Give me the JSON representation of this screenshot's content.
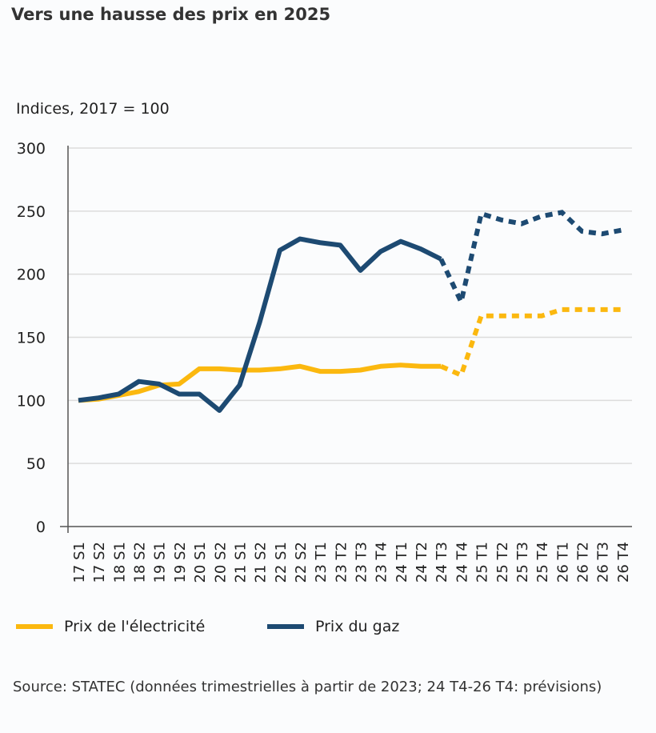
{
  "chart_data": {
    "type": "line",
    "title": "Vers une hausse des prix en 2025",
    "ylabel": "Indices, 2017 = 100",
    "xlabel": "",
    "ylim": [
      0,
      300
    ],
    "yticks": [
      0,
      50,
      100,
      150,
      200,
      250,
      300
    ],
    "grid": true,
    "legend_position": "bottom",
    "categories": [
      "17 S1",
      "17 S2",
      "18 S1",
      "18 S2",
      "19 S1",
      "19 S2",
      "20 S1",
      "20 S2",
      "21 S1",
      "21 S2",
      "22 S1",
      "22 S2",
      "23 T1",
      "23 T2",
      "23 T3",
      "23 T4",
      "24 T1",
      "24 T2",
      "24 T3",
      "24 T4",
      "25 T1",
      "25 T2",
      "25 T3",
      "25 T4",
      "26 T1",
      "26 T2",
      "26 T3",
      "26 T4"
    ],
    "forecast_from": "24 T3",
    "series": [
      {
        "name": "Prix de l'électricité",
        "color": "#fbb80f",
        "values": [
          100,
          101,
          104,
          107,
          112,
          113,
          125,
          125,
          124,
          124,
          125,
          127,
          123,
          123,
          124,
          127,
          128,
          127,
          127,
          120,
          167,
          167,
          167,
          167,
          172,
          172,
          172,
          172
        ]
      },
      {
        "name": "Prix du gaz",
        "color": "#1d4a72",
        "values": [
          100,
          102,
          105,
          115,
          113,
          105,
          105,
          92,
          112,
          162,
          219,
          228,
          225,
          223,
          203,
          218,
          226,
          220,
          212,
          178,
          248,
          243,
          240,
          246,
          249,
          234,
          232,
          235
        ]
      }
    ],
    "source": "Source: STATEC (données trimestrielles à partir de 2023; 24 T4-26 T4: prévisions)"
  }
}
